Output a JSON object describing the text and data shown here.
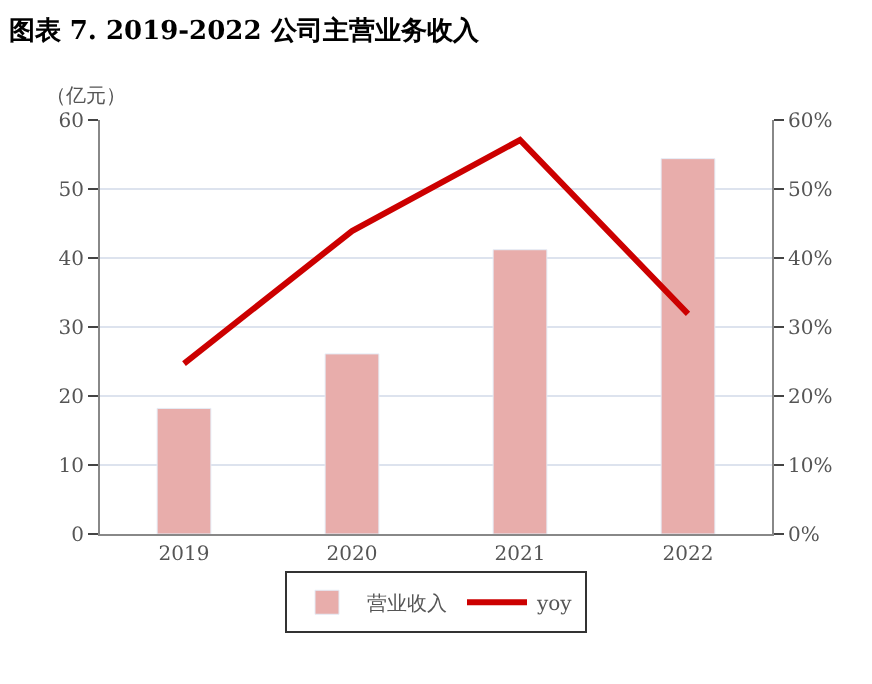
{
  "chart_data": {
    "type": "bar",
    "title": "图表 7. 2019-2022 公司主营业务收入",
    "ylabel": "（亿元）",
    "categories": [
      "2019",
      "2020",
      "2021",
      "2022"
    ],
    "series": [
      {
        "name": "营业收入",
        "color": "#e8adab",
        "values": [
          18.2,
          26.1,
          41.2,
          54.4
        ]
      },
      {
        "name": "yoy",
        "type": "line",
        "axis": "y2",
        "color": "#cc0000",
        "values": [
          24.7,
          43.9,
          57.1,
          31.9
        ]
      }
    ],
    "ylim": [
      0,
      60
    ],
    "yticks": [
      0,
      10,
      20,
      30,
      40,
      50,
      60
    ],
    "y2lim": [
      0,
      60
    ],
    "y2ticks": [
      {
        "value": 0,
        "label": "0%"
      },
      {
        "value": 10,
        "label": "10%"
      },
      {
        "value": 20,
        "label": "20%"
      },
      {
        "value": 30,
        "label": "30%"
      },
      {
        "value": 40,
        "label": "40%"
      },
      {
        "value": 50,
        "label": "50%"
      },
      {
        "value": 60,
        "label": "60%"
      }
    ],
    "grid": "y",
    "legend": "bottom",
    "marker": "none",
    "line_style": "solid"
  }
}
